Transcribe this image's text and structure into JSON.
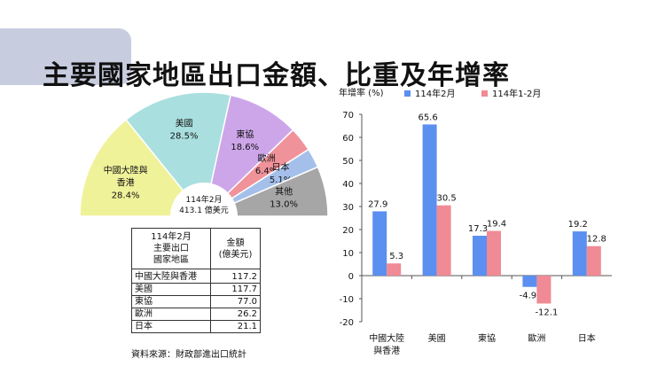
{
  "page_title": "主要國家地區出口金額、比重及年增率",
  "pie": {
    "center_label_line1": "114年2月",
    "center_label_line2": "413.1 億美元",
    "slices": [
      {
        "name": "中國大陸與\n香港",
        "pct": "28.4%",
        "value": 28.4,
        "color": "#f0f29a"
      },
      {
        "name": "美國",
        "pct": "28.5%",
        "value": 28.5,
        "color": "#a9dfde"
      },
      {
        "name": "東協",
        "pct": "18.6%",
        "value": 18.6,
        "color": "#cda6ea"
      },
      {
        "name": "歐洲",
        "pct": "6.4%",
        "value": 6.4,
        "color": "#f0929a"
      },
      {
        "name": "日本",
        "pct": "5.1%",
        "value": 5.1,
        "color": "#a4c0ea"
      },
      {
        "name": "其他",
        "pct": "13.0%",
        "value": 13.0,
        "color": "#a6a6a6"
      }
    ]
  },
  "table": {
    "header_region": "114年2月\n主要出口\n國家地區",
    "header_amount": "金額\n(億美元)",
    "rows": [
      {
        "region": "中國大陸與香港",
        "amount": "117.2"
      },
      {
        "region": "美國",
        "amount": "117.7"
      },
      {
        "region": "東協",
        "amount": "77.0"
      },
      {
        "region": "歐洲",
        "amount": "26.2"
      },
      {
        "region": "日本",
        "amount": "21.1"
      }
    ]
  },
  "source_note": "資料來源：財政部進出口統計",
  "chart_data": {
    "type": "bar",
    "ylabel": "年增率 (%)",
    "ylim": [
      -20,
      70
    ],
    "yticks": [
      -20,
      -10,
      0,
      10,
      20,
      30,
      40,
      50,
      60,
      70
    ],
    "categories": [
      "中國大陸\n與香港",
      "美國",
      "東協",
      "歐洲",
      "日本"
    ],
    "legend_position": "top",
    "series": [
      {
        "name": "114年2月",
        "color": "#5b8ff0",
        "values": [
          27.9,
          65.6,
          17.3,
          -4.9,
          19.2
        ],
        "labels": [
          "27.9",
          "65.6",
          "17.3",
          "-4.9",
          "19.2"
        ]
      },
      {
        "name": "114年1-2月",
        "color": "#f08a94",
        "values": [
          5.3,
          30.5,
          19.4,
          -12.1,
          12.8
        ],
        "labels": [
          "5.3",
          "30.5",
          "19.4",
          "-12.1",
          "12.8"
        ]
      }
    ]
  }
}
